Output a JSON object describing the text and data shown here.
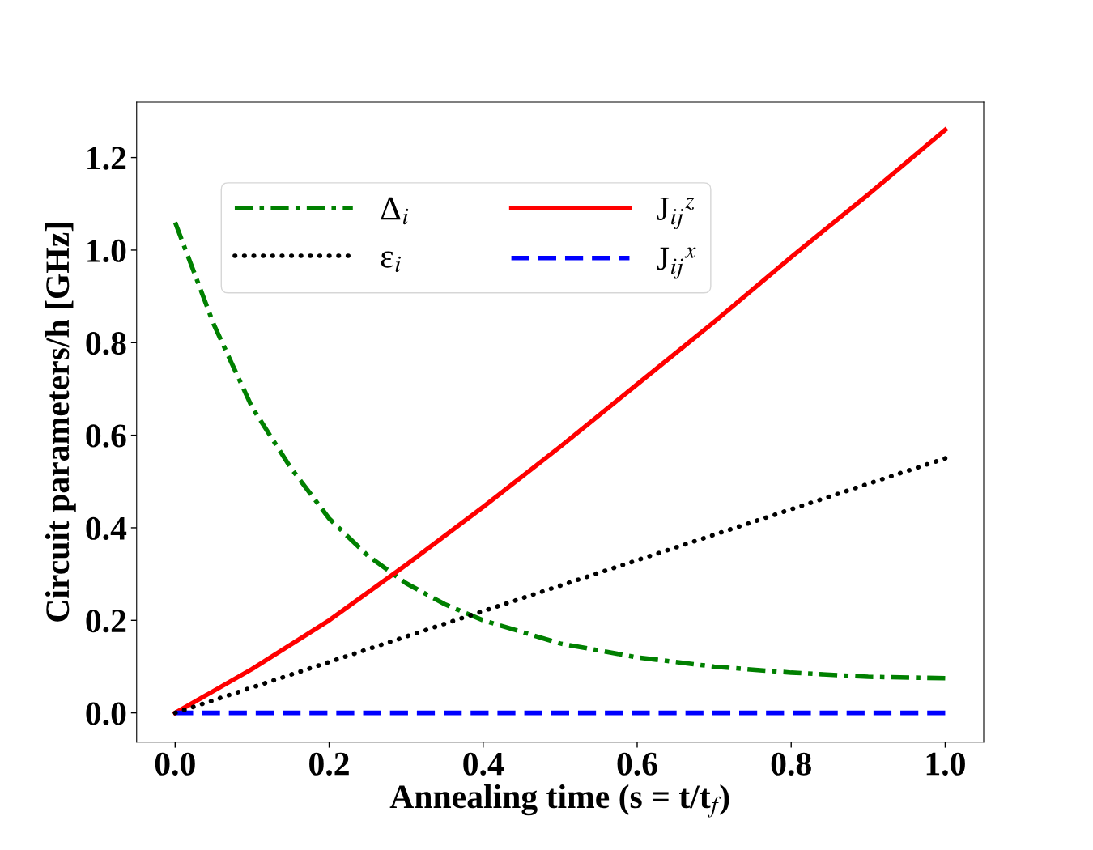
{
  "chart_data": {
    "type": "line",
    "xlabel": "Annealing time (s = t/t$_{f}$)",
    "ylabel": "Circuit parameters/h [GHz]",
    "xlim": [
      -0.05,
      1.05
    ],
    "ylim": [
      -0.063,
      1.32
    ],
    "xticks": [
      {
        "value": 0,
        "label": "0.0"
      },
      0.2,
      0.4,
      0.6,
      0.8,
      {
        "value": 1,
        "label": "1.0"
      }
    ],
    "yticks": [
      {
        "value": 0,
        "label": "0.0"
      },
      0.2,
      0.4,
      0.6,
      0.8,
      {
        "value": 1,
        "label": "1.0"
      },
      1.2
    ],
    "grid": false,
    "legend": "top left",
    "marker": "none",
    "series": [
      {
        "name": "Δ$_{i}$",
        "color": "#008000",
        "line_style": "dashdot",
        "x": [
          0,
          0.05,
          0.1,
          0.15,
          0.2,
          0.25,
          0.3,
          0.35,
          0.4,
          0.5,
          0.6,
          0.7,
          0.8,
          0.9,
          1.0
        ],
        "values": [
          1.06,
          0.84,
          0.66,
          0.53,
          0.42,
          0.34,
          0.28,
          0.235,
          0.2,
          0.15,
          0.12,
          0.1,
          0.087,
          0.078,
          0.075
        ]
      },
      {
        "name": "ε$_{i}$",
        "color": "#000000",
        "line_style": "dotted",
        "x": [
          0,
          1.0
        ],
        "values": [
          0,
          0.55
        ]
      },
      {
        "name": "J$_{ij}$$^{z}$",
        "color": "#ff0000",
        "line_style": "solid",
        "x": [
          0,
          0.1,
          0.2,
          0.3,
          0.4,
          0.5,
          0.6,
          0.7,
          0.8,
          0.9,
          1.0
        ],
        "values": [
          0,
          0.095,
          0.2,
          0.32,
          0.445,
          0.575,
          0.71,
          0.845,
          0.985,
          1.12,
          1.26
        ]
      },
      {
        "name": "J$_{ij}$$^{x}$",
        "color": "#0000ff",
        "line_style": "dashed",
        "x": [
          0,
          1.0
        ],
        "values": [
          0,
          0
        ]
      }
    ]
  }
}
